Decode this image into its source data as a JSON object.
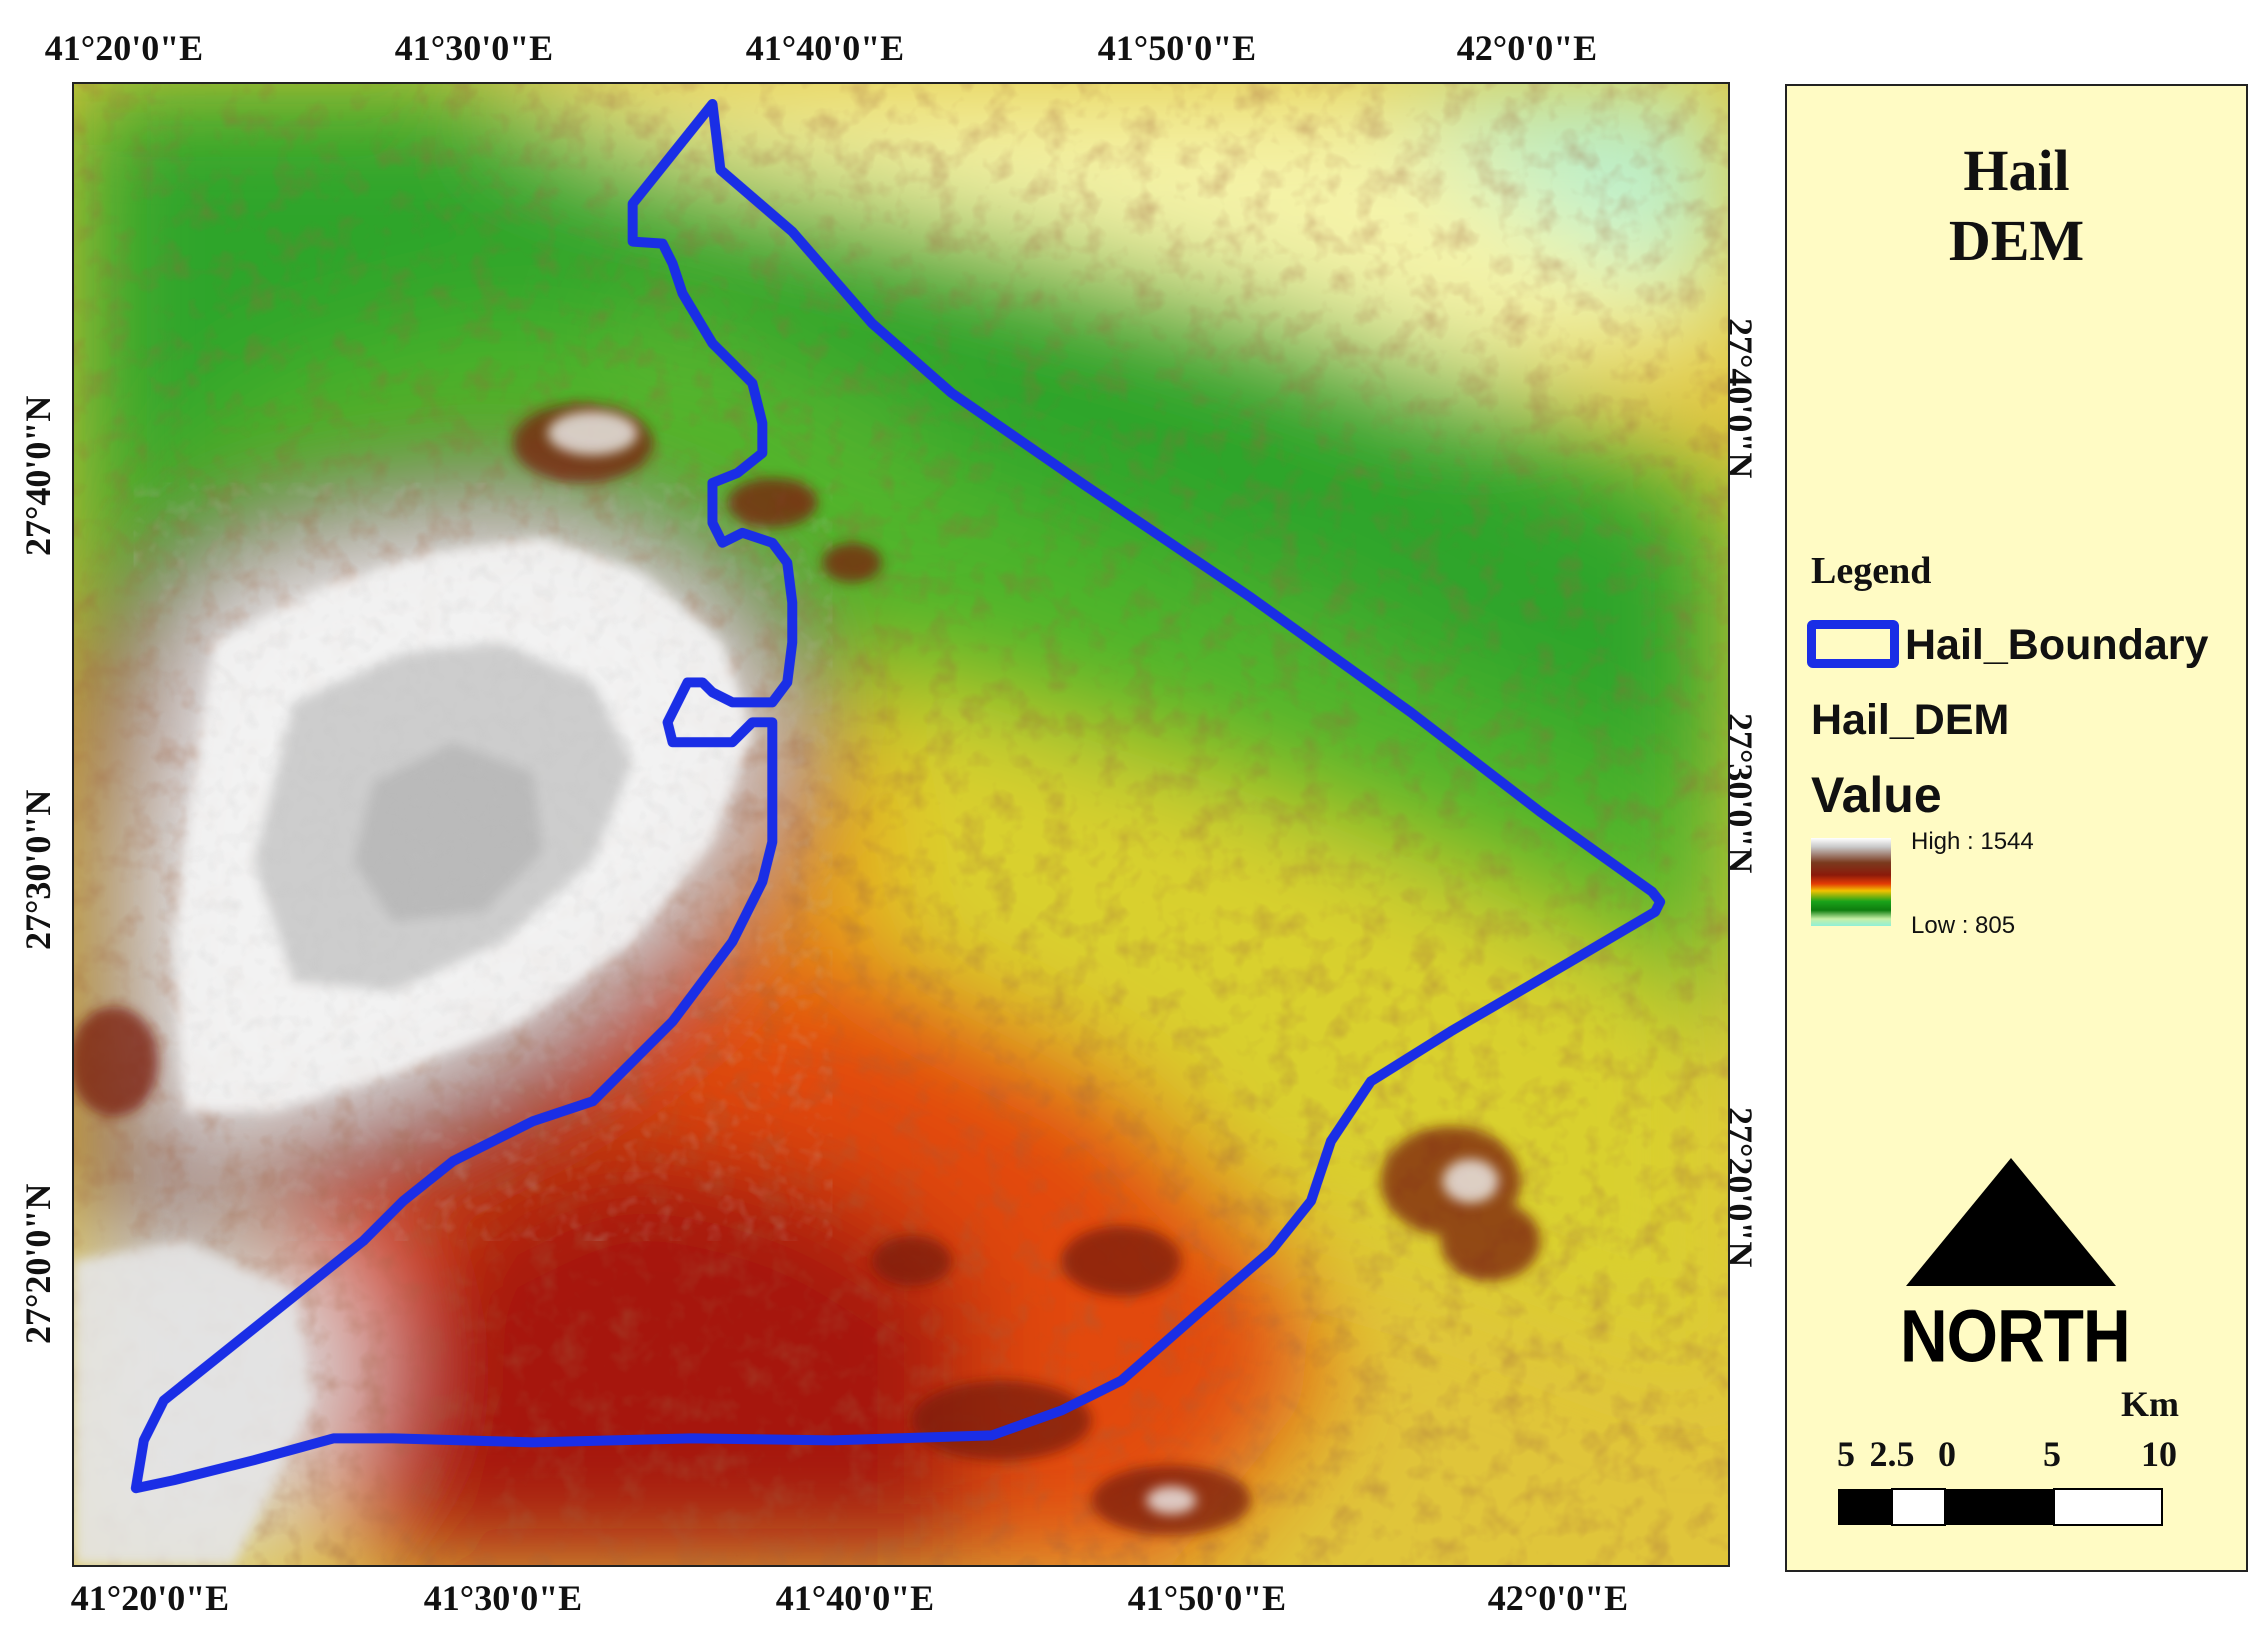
{
  "map": {
    "top_axis_labels": [
      "41°20'0\"E",
      "41°30'0\"E",
      "41°40'0\"E",
      "41°50'0\"E",
      "42°0'0\"E"
    ],
    "bottom_axis_labels": [
      "41°20'0\"E",
      "41°30'0\"E",
      "41°40'0\"E",
      "41°50'0\"E",
      "42°0'0\"E"
    ],
    "left_axis_labels": [
      "27°40'0\"N",
      "27°30'0\"N",
      "27°20'0\"N"
    ],
    "right_axis_labels": [
      "27°40'0\"N",
      "27°30'0\"N",
      "27°20'0\"N"
    ],
    "boundary_color": "#1a2ee6",
    "layer": "Hail DEM raster",
    "color_ramp": [
      "#ffffff",
      "#8b1a0a",
      "#e23b06",
      "#f2c200",
      "#1aa31a",
      "#8ff0d8"
    ]
  },
  "legend": {
    "title_line1": "Hail",
    "title_line2": "DEM",
    "heading": "Legend",
    "boundary_label": "Hail_Boundary",
    "dem_label": "Hail_DEM",
    "value_label": "Value",
    "high_label": "High : 1544",
    "low_label": "Low : 805"
  },
  "north_arrow": {
    "label": "NORTH",
    "icon": "north-arrow-icon"
  },
  "scale": {
    "unit": "Km",
    "ticks": [
      "5",
      "2.5",
      "0",
      "5",
      "10"
    ]
  }
}
